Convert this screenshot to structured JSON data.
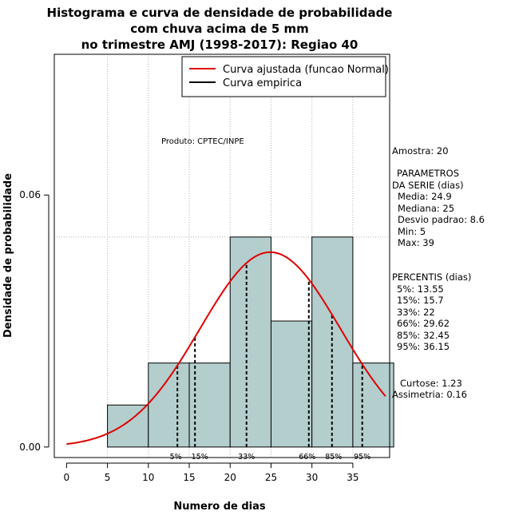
{
  "colors": {
    "bar_fill": "#b4cece",
    "fit_curve": "#e00000",
    "grid": "#b0b0b0"
  },
  "chart_data": {
    "type": "bar",
    "title_lines": [
      "Histograma e curva de densidade de probabilidade",
      "com chuva acima de 5 mm",
      "no trimestre AMJ (1998-2017): Regiao 40"
    ],
    "xlabel": "Numero de dias",
    "ylabel": "Densidade de probabilidade",
    "xlim": [
      -1.5,
      39.5
    ],
    "ylim": [
      -0.0025,
      0.0935
    ],
    "x_ticks": [
      0,
      5,
      10,
      15,
      20,
      25,
      30,
      35
    ],
    "y_ticks": [
      0.0,
      0.06
    ],
    "y_tick_labels": [
      "0.00",
      "0.06"
    ],
    "bins": [
      {
        "from": 5,
        "to": 10,
        "density": 0.01
      },
      {
        "from": 10,
        "to": 15,
        "density": 0.02
      },
      {
        "from": 15,
        "to": 20,
        "density": 0.02
      },
      {
        "from": 20,
        "to": 25,
        "density": 0.05
      },
      {
        "from": 25,
        "to": 30,
        "density": 0.03
      },
      {
        "from": 30,
        "to": 35,
        "density": 0.05
      },
      {
        "from": 35,
        "to": 40,
        "density": 0.02
      }
    ],
    "normal_fit": {
      "mean": 24.9,
      "sd": 8.6,
      "x_from": 0,
      "x_to": 39
    },
    "reference_line_y": 0.05,
    "percentile_lines": [
      {
        "label": "5%",
        "x": 13.55
      },
      {
        "label": "15%",
        "x": 15.7
      },
      {
        "label": "33%",
        "x": 22
      },
      {
        "label": "66%",
        "x": 29.62
      },
      {
        "label": "85%",
        "x": 32.45
      },
      {
        "label": "95%",
        "x": 36.15
      }
    ],
    "legend": {
      "position": "top-right",
      "entries": [
        "Curva ajustada (funcao Normal)",
        "Curva empirica"
      ]
    },
    "annotation": "Produto: CPTEC/INPE"
  },
  "stats_panel": {
    "amostra": "Amostra: 20",
    "parametros_header": [
      "PARAMETROS",
      "DA SERIE (dias)"
    ],
    "parametros": [
      "Media: 24.9",
      "Mediana: 25",
      "Desvio padrao: 8.6",
      "Min: 5",
      "Max: 39"
    ],
    "percentis_header": "PERCENTIS (dias)",
    "percentis": [
      "5%: 13.55",
      "15%: 15.7",
      "33%: 22",
      "66%: 29.62",
      "85%: 32.45",
      "95%: 36.15"
    ],
    "curtose": "Curtose: 1.23",
    "assimetria": "Assimetria: 0.16"
  }
}
